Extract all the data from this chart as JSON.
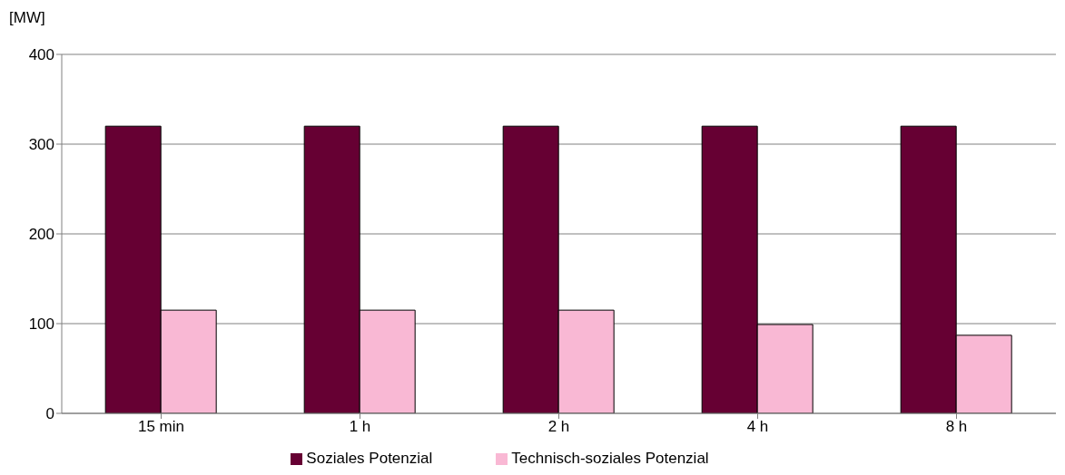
{
  "chart_data": {
    "type": "bar",
    "ylabel": "[MW]",
    "categories": [
      "15 min",
      "1 h",
      "2 h",
      "4 h",
      "8 h"
    ],
    "series": [
      {
        "name": "Soziales Potenzial",
        "color": "#660033",
        "values": [
          320,
          320,
          320,
          320,
          320
        ]
      },
      {
        "name": "Technisch-soziales Potenzial",
        "color": "#f9b8d4",
        "values": [
          115,
          115,
          115,
          99,
          87
        ]
      }
    ],
    "ylim": [
      0,
      400
    ],
    "yticks": [
      0,
      100,
      200,
      300,
      400
    ],
    "grid": "y",
    "legend": "bottom"
  }
}
